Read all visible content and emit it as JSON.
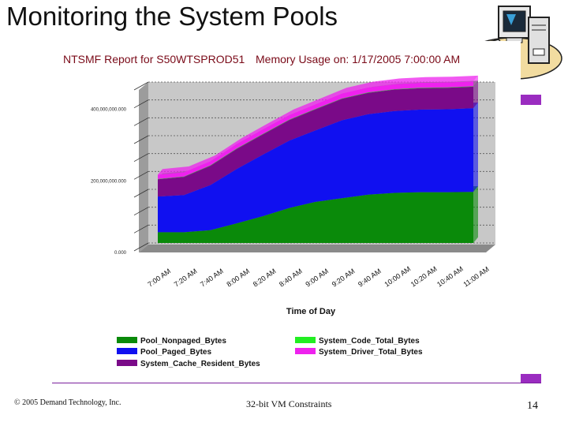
{
  "slide": {
    "title": "Monitoring the System Pools",
    "footer_copyright": "© 2005 Demand Technology, Inc.",
    "footer_center": "32-bit VM Constraints",
    "page_number": "14"
  },
  "colors": {
    "accent": "#9a2cc0",
    "nonpaged": "#0a8a0a",
    "paged": "#1010f0",
    "cache": "#7a0a88",
    "code": "#22ee22",
    "driver": "#ee22ee"
  },
  "chart_data": {
    "type": "area",
    "stacked": true,
    "title": "NTSMF Report for S50WTSPROD51",
    "subtitle": "Memory Usage on: 1/17/2005 7:00:00 AM",
    "xlabel": "Time of Day",
    "ylabel": "",
    "ylim": [
      0,
      450000000
    ],
    "yticks": [
      0,
      200000000,
      400000000
    ],
    "ytick_labels": [
      "0.000",
      "200,000,000.000",
      "400,000,000.000"
    ],
    "x": [
      "7:00 AM",
      "7:20 AM",
      "7:40 AM",
      "8:00 AM",
      "8:20 AM",
      "8:40 AM",
      "9:00 AM",
      "9:20 AM",
      "9:40 AM",
      "10:00 AM",
      "10:20 AM",
      "10:40 AM",
      "11:00 AM"
    ],
    "grid": true,
    "legend_position": "bottom",
    "series": [
      {
        "name": "Pool_Nonpaged_Bytes",
        "color": "#0a8a0a",
        "values": [
          30000000,
          30000000,
          36000000,
          55000000,
          75000000,
          98000000,
          115000000,
          125000000,
          135000000,
          140000000,
          142000000,
          142000000,
          143000000
        ]
      },
      {
        "name": "Pool_Paged_Bytes",
        "color": "#1010f0",
        "values": [
          100000000,
          104000000,
          126000000,
          152000000,
          172000000,
          188000000,
          200000000,
          218000000,
          225000000,
          229000000,
          231000000,
          232000000,
          234000000
        ]
      },
      {
        "name": "System_Cache_Resident_Bytes",
        "color": "#7a0a88",
        "values": [
          48000000,
          51000000,
          54000000,
          56000000,
          57000000,
          58000000,
          59000000,
          60000000,
          60000000,
          60000000,
          60000000,
          60000000,
          60000000
        ]
      },
      {
        "name": "System_Code_Total_Bytes",
        "color": "#22ee22",
        "values": [
          1000000,
          1000000,
          1000000,
          1000000,
          1000000,
          1000000,
          1000000,
          1000000,
          1000000,
          1000000,
          1000000,
          1000000,
          1000000
        ]
      },
      {
        "name": "System_Driver_Total_Bytes",
        "color": "#ee22ee",
        "values": [
          12000000,
          12000000,
          12000000,
          13000000,
          13000000,
          13000000,
          13000000,
          14000000,
          14000000,
          14000000,
          14000000,
          14000000,
          14000000
        ]
      }
    ]
  },
  "legend_left": [
    "Pool_Nonpaged_Bytes",
    "Pool_Paged_Bytes",
    "System_Cache_Resident_Bytes"
  ],
  "legend_right": [
    "System_Code_Total_Bytes",
    "System_Driver_Total_Bytes"
  ],
  "clipart_icon": "computer-clipart-icon"
}
